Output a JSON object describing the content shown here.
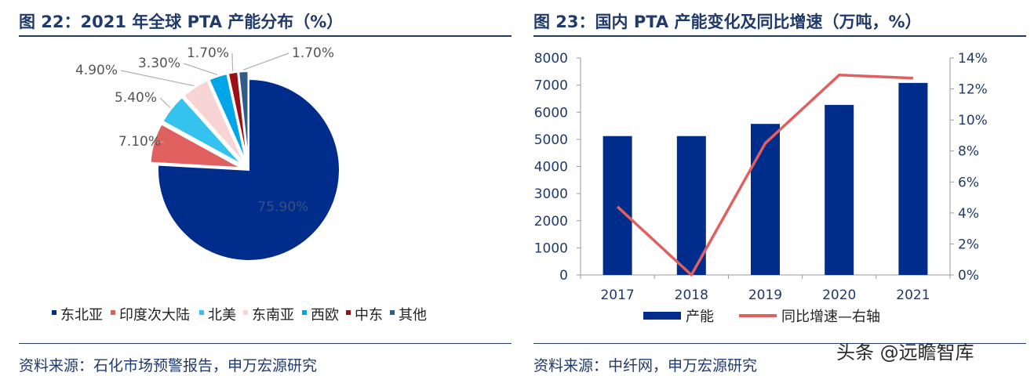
{
  "left": {
    "title": "图 22：2021 年全球 PTA 产能分布（%）",
    "source": "资料来源：石化市场预警报告，申万宏源研究"
  },
  "right": {
    "title": "图 23：国内 PTA 产能变化及同比增速（万吨，%）",
    "source": "资料来源：中纤网，申万宏源研究"
  },
  "watermark": "头条 @远瞻智库",
  "colors": {
    "title": "#1f3a6b",
    "bar": "#002d8c",
    "line": "#e0605f",
    "pie": [
      "#002d8c",
      "#e0605f",
      "#34c3ee",
      "#f8d4d4",
      "#00a6e8",
      "#9b0f17",
      "#2f5d87"
    ]
  },
  "chart_data": [
    {
      "type": "pie",
      "categories": [
        "东北亚",
        "印度次大陆",
        "北美",
        "东南亚",
        "西欧",
        "中东",
        "其他"
      ],
      "values": [
        75.9,
        7.1,
        5.4,
        4.9,
        3.3,
        1.7,
        1.7
      ],
      "labels": [
        "75.90%",
        "7.10%",
        "5.40%",
        "4.90%",
        "3.30%",
        "1.70%",
        "1.70%"
      ],
      "legend_position": "bottom"
    },
    {
      "type": "bar",
      "categories": [
        "2017",
        "2018",
        "2019",
        "2020",
        "2021"
      ],
      "series": [
        {
          "name": "产能",
          "type": "bar",
          "axis": "left",
          "values": [
            5120,
            5120,
            5570,
            6270,
            7080
          ]
        },
        {
          "name": "同比增速—右轴",
          "type": "line",
          "axis": "right",
          "values": [
            4.4,
            0.0,
            8.5,
            12.9,
            12.7
          ]
        }
      ],
      "ylim": [
        0,
        8000
      ],
      "yticks": [
        "0",
        "1000",
        "2000",
        "3000",
        "4000",
        "5000",
        "6000",
        "7000",
        "8000"
      ],
      "y2lim": [
        0,
        14
      ],
      "y2ticks": [
        "0%",
        "2%",
        "4%",
        "6%",
        "8%",
        "10%",
        "12%",
        "14%"
      ],
      "legend_position": "bottom"
    }
  ]
}
